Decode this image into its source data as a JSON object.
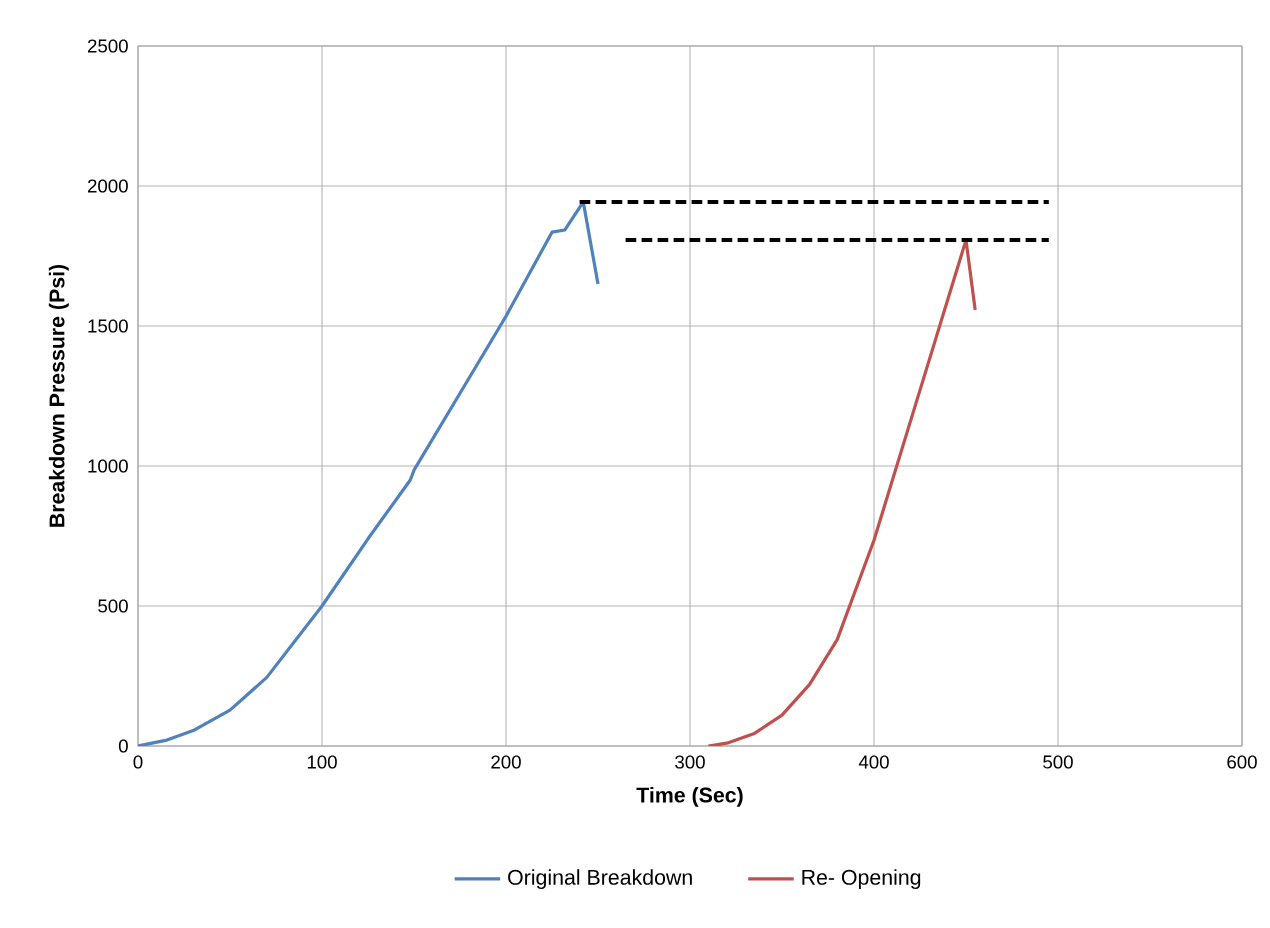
{
  "chart_data": {
    "type": "line",
    "xlabel": "Time (Sec)",
    "ylabel": "Breakdown Pressure (Psi)",
    "xlim": [
      0,
      600
    ],
    "ylim": [
      0,
      2500
    ],
    "xticks": [
      0,
      100,
      200,
      300,
      400,
      500,
      600
    ],
    "yticks": [
      0,
      500,
      1000,
      1500,
      2000,
      2500
    ],
    "grid": true,
    "legend": "bottom",
    "marker": "none",
    "series": [
      {
        "name": "Original Breakdown",
        "color": "#4f81bd",
        "x": [
          0,
          15,
          30,
          50,
          70,
          100,
          125,
          148,
          150,
          175,
          200,
          225,
          232,
          242,
          250
        ],
        "values": [
          0,
          20,
          55,
          128,
          245,
          500,
          740,
          950,
          985,
          1260,
          1535,
          1835,
          1843,
          1943,
          1650
        ]
      },
      {
        "name": "Re- Opening",
        "color": "#c0504d",
        "x": [
          310,
          320,
          335,
          350,
          365,
          380,
          400,
          425,
          450,
          455
        ],
        "values": [
          0,
          10,
          45,
          110,
          220,
          380,
          735,
          1271,
          1807,
          1557
        ]
      },
      {
        "type": "line",
        "line_style": "dashed",
        "color": "#000000",
        "x": [
          240,
          495
        ],
        "values": [
          1943,
          1943
        ]
      },
      {
        "type": "line",
        "line_style": "dashed",
        "color": "#000000",
        "x": [
          265,
          495
        ],
        "values": [
          1807,
          1807
        ]
      }
    ]
  }
}
